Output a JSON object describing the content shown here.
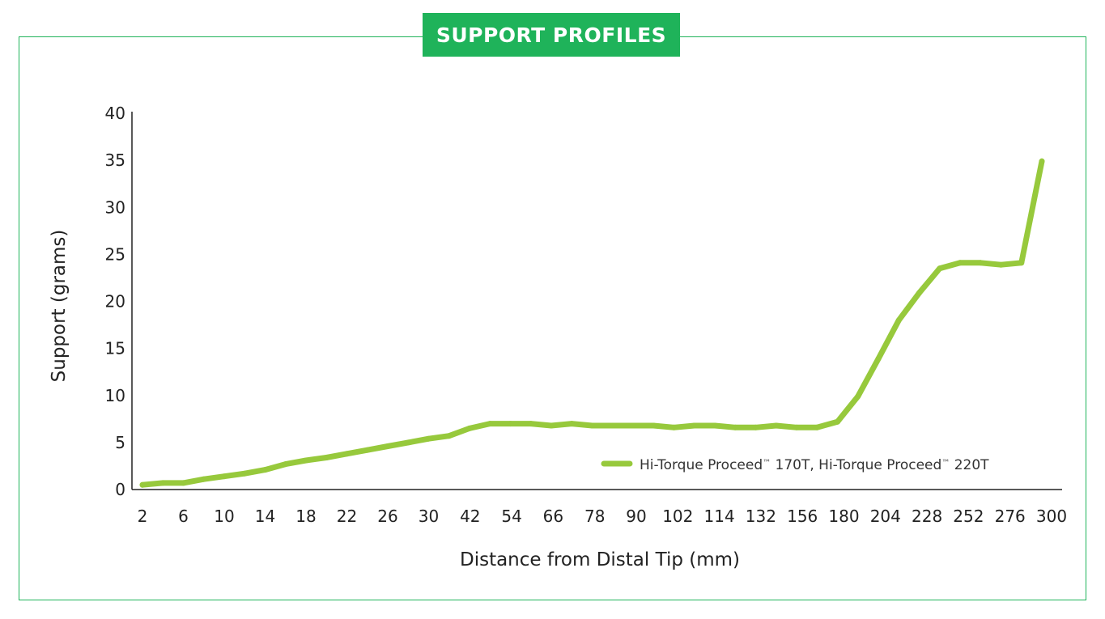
{
  "title": "SUPPORT PROFILES",
  "colors": {
    "frame": "#1fb35a",
    "title_bg": "#1fb35a",
    "title_text": "#ffffff",
    "series": "#97c93c",
    "axis": "#222222"
  },
  "chart_data": {
    "type": "line",
    "xlabel": "Distance from Distal Tip (mm)",
    "ylabel": "Support (grams)",
    "ylim": [
      0,
      40
    ],
    "yticks": [
      0,
      5,
      10,
      15,
      20,
      25,
      30,
      35,
      40
    ],
    "x_tick_labels": [
      "2",
      "6",
      "10",
      "14",
      "18",
      "22",
      "26",
      "30",
      "42",
      "54",
      "66",
      "78",
      "90",
      "102",
      "114",
      "132",
      "156",
      "180",
      "204",
      "228",
      "252",
      "276",
      "300"
    ],
    "x_axis_scale": "categorical, non-uniform spacing; one point between each labeled tick",
    "grid": false,
    "legend_position": "bottom-right",
    "series": [
      {
        "name": "Hi-Torque Proceed™ 170T, Hi-Torque Proceed™ 220T",
        "legend_parts": [
          "Hi-Torque Proceed",
          "™",
          " 170T, Hi-Torque Proceed",
          "™",
          " 220T"
        ],
        "values": [
          0.5,
          0.7,
          0.7,
          1.1,
          1.4,
          1.7,
          2.1,
          2.7,
          3.1,
          3.4,
          3.8,
          4.2,
          4.6,
          5.0,
          5.4,
          5.7,
          6.5,
          7.0,
          7.0,
          7.0,
          6.8,
          7.0,
          6.8,
          6.8,
          6.8,
          6.8,
          6.6,
          6.8,
          6.8,
          6.6,
          6.6,
          6.8,
          6.6,
          6.6,
          7.2,
          9.9,
          13.9,
          18.0,
          20.9,
          23.5,
          24.1,
          24.1,
          23.9,
          24.1,
          34.9
        ]
      }
    ]
  }
}
